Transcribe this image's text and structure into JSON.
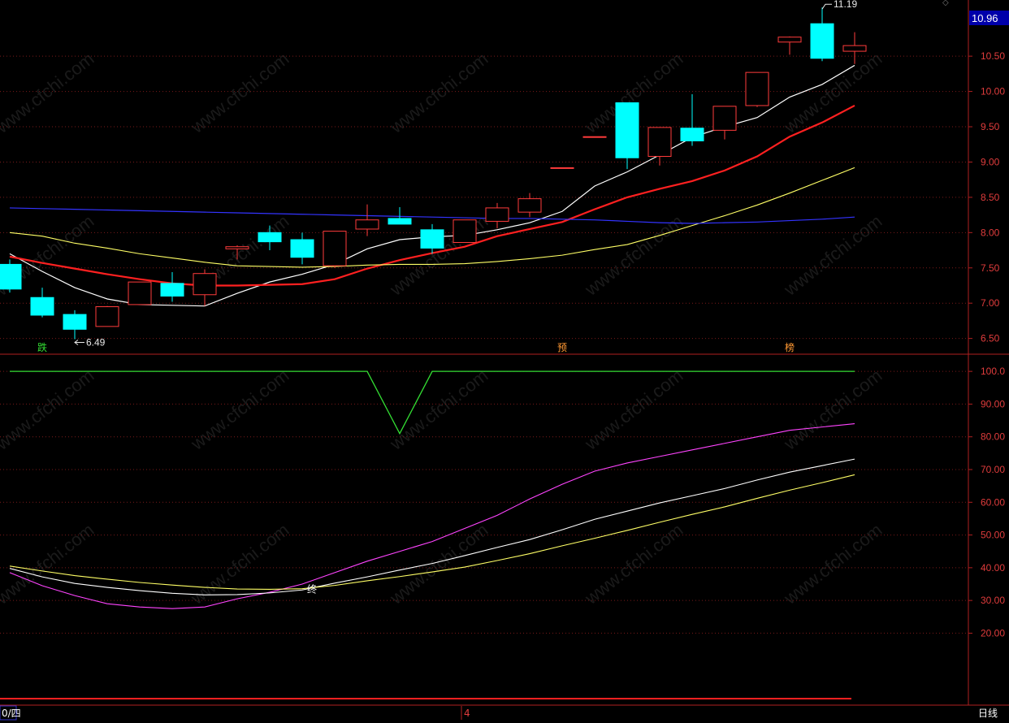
{
  "price_panel": {
    "current_price": "10.96",
    "high_label": "11.19",
    "low_label": "6.49",
    "signals": [
      {
        "label": "跌",
        "bar": 1,
        "color": "#33dd33"
      },
      {
        "label": "预",
        "bar": 17,
        "color": "#ff9933"
      },
      {
        "label": "榜",
        "bar": 24,
        "color": "#ff9933"
      }
    ],
    "colors": {
      "up": "#ff3b3b",
      "down": "#00ffff",
      "ma1": "#ffffff",
      "ma2": "#ff2020",
      "ma3": "#ffff66",
      "ma4": "#3333ff"
    }
  },
  "indicator_panel": {
    "cross_label": "终",
    "colors": {
      "green": "#33dd33",
      "magenta": "#ff44ff",
      "white": "#ffffff",
      "yellow": "#ffff66"
    }
  },
  "footer": {
    "left_label": "0/四",
    "mid_label": "4",
    "period_label": "日线"
  },
  "watermark": "www.cfchi.com",
  "chart_data": [
    {
      "type": "candlestick",
      "title": "",
      "ylim": [
        6.3,
        11.25
      ],
      "yticks": [
        6.5,
        7.0,
        7.5,
        8.0,
        8.5,
        9.0,
        9.5,
        10.0,
        10.5
      ],
      "candles": [
        {
          "o": 7.55,
          "h": 7.62,
          "c": 7.2,
          "l": 7.15
        },
        {
          "o": 7.08,
          "h": 7.22,
          "c": 6.83,
          "l": 6.8
        },
        {
          "o": 6.84,
          "h": 6.9,
          "c": 6.63,
          "l": 6.49
        },
        {
          "o": 6.67,
          "h": 6.96,
          "c": 6.95,
          "l": 6.67
        },
        {
          "o": 6.98,
          "h": 7.3,
          "c": 7.3,
          "l": 6.98
        },
        {
          "o": 7.28,
          "h": 7.44,
          "c": 7.1,
          "l": 7.02
        },
        {
          "o": 7.12,
          "h": 7.48,
          "c": 7.42,
          "l": 6.96
        },
        {
          "o": 7.77,
          "h": 7.82,
          "c": 7.8,
          "l": 7.62
        },
        {
          "o": 8.0,
          "h": 8.1,
          "c": 7.87,
          "l": 7.75
        },
        {
          "o": 7.9,
          "h": 8.0,
          "c": 7.65,
          "l": 7.55
        },
        {
          "o": 7.53,
          "h": 8.02,
          "c": 8.02,
          "l": 7.5
        },
        {
          "o": 8.05,
          "h": 8.4,
          "c": 8.18,
          "l": 7.95
        },
        {
          "o": 8.2,
          "h": 8.36,
          "c": 8.12,
          "l": 8.12
        },
        {
          "o": 8.04,
          "h": 8.12,
          "c": 7.78,
          "l": 7.7
        },
        {
          "o": 7.86,
          "h": 8.18,
          "c": 8.18,
          "l": 7.86
        },
        {
          "o": 8.16,
          "h": 8.42,
          "c": 8.35,
          "l": 8.06
        },
        {
          "o": 8.29,
          "h": 8.56,
          "c": 8.48,
          "l": 8.22
        },
        {
          "o": 8.92,
          "h": 8.92,
          "c": 8.92,
          "l": 8.92
        },
        {
          "o": 9.36,
          "h": 9.36,
          "c": 9.36,
          "l": 9.36
        },
        {
          "o": 9.84,
          "h": 9.84,
          "c": 9.06,
          "l": 8.9
        },
        {
          "o": 9.08,
          "h": 9.49,
          "c": 9.49,
          "l": 8.95
        },
        {
          "o": 9.48,
          "h": 9.96,
          "c": 9.3,
          "l": 9.23
        },
        {
          "o": 9.45,
          "h": 9.79,
          "c": 9.79,
          "l": 9.32
        },
        {
          "o": 9.8,
          "h": 10.27,
          "c": 10.27,
          "l": 9.78
        },
        {
          "o": 10.7,
          "h": 10.78,
          "c": 10.77,
          "l": 10.52
        },
        {
          "o": 10.96,
          "h": 11.19,
          "c": 10.47,
          "l": 10.43
        },
        {
          "o": 10.57,
          "h": 10.84,
          "c": 10.65,
          "l": 10.39
        }
      ],
      "series": [
        {
          "values": [
            7.7,
            7.45,
            7.22,
            7.06,
            6.98,
            6.97,
            6.96,
            7.14,
            7.3,
            7.41,
            7.55,
            7.77,
            7.9,
            7.94,
            7.96,
            8.04,
            8.14,
            8.3,
            8.66,
            8.86,
            9.1,
            9.35,
            9.5,
            9.63,
            9.92,
            10.1,
            10.37
          ]
        },
        {
          "values": [
            7.66,
            7.57,
            7.49,
            7.41,
            7.34,
            7.28,
            7.25,
            7.25,
            7.26,
            7.27,
            7.34,
            7.49,
            7.61,
            7.71,
            7.8,
            7.95,
            8.05,
            8.15,
            8.33,
            8.5,
            8.62,
            8.73,
            8.88,
            9.08,
            9.36,
            9.56,
            9.8
          ]
        },
        {
          "values": [
            8.0,
            7.95,
            7.85,
            7.78,
            7.7,
            7.64,
            7.58,
            7.53,
            7.52,
            7.51,
            7.52,
            7.54,
            7.55,
            7.55,
            7.56,
            7.59,
            7.63,
            7.68,
            7.76,
            7.83,
            7.96,
            8.1,
            8.24,
            8.39,
            8.56,
            8.74,
            8.92
          ]
        },
        {
          "values": [
            8.35,
            8.34,
            8.33,
            8.32,
            8.31,
            8.3,
            8.29,
            8.28,
            8.27,
            8.26,
            8.25,
            8.24,
            8.23,
            8.22,
            8.21,
            8.2,
            8.2,
            8.19,
            8.18,
            8.16,
            8.14,
            8.13,
            8.14,
            8.15,
            8.17,
            8.19,
            8.22
          ]
        }
      ]
    },
    {
      "type": "line",
      "title": "",
      "ylim": [
        0,
        105
      ],
      "yticks": [
        20.0,
        30.0,
        40.0,
        50.0,
        60.0,
        70.0,
        80.0,
        90.0,
        100.0
      ],
      "series": [
        {
          "values": [
            100,
            100,
            100,
            100,
            100,
            100,
            100,
            100,
            100,
            100,
            100,
            100,
            81,
            100,
            100,
            100,
            100,
            100,
            100,
            100,
            100,
            100,
            100,
            100,
            100,
            100,
            100
          ]
        },
        {
          "values": [
            38.5,
            34.5,
            31.5,
            29.0,
            28.0,
            27.5,
            28.0,
            30.5,
            32.5,
            35.0,
            38.5,
            42.0,
            45.0,
            48.0,
            52.0,
            56.0,
            61.0,
            65.5,
            69.5,
            72.0,
            74.0,
            76.0,
            78.0,
            80.0,
            82.0,
            83.0,
            84.0
          ]
        },
        {
          "values": [
            39.8,
            37.2,
            35.2,
            34.0,
            33.0,
            32.2,
            31.7,
            31.8,
            32.3,
            33.2,
            35.3,
            37.2,
            39.3,
            41.3,
            43.7,
            46.2,
            48.6,
            51.6,
            54.8,
            57.3,
            59.8,
            62.0,
            64.2,
            66.8,
            69.2,
            71.2,
            73.2
          ]
        },
        {
          "values": [
            40.5,
            39.0,
            37.6,
            36.5,
            35.5,
            34.7,
            34.0,
            33.5,
            33.4,
            33.6,
            34.6,
            36.0,
            37.3,
            38.7,
            40.2,
            42.2,
            44.3,
            46.7,
            49.0,
            51.4,
            53.9,
            56.3,
            58.6,
            61.2,
            63.7,
            66.0,
            68.4
          ]
        }
      ],
      "cross_point": {
        "x": 9.3,
        "y": 33.6
      }
    }
  ]
}
